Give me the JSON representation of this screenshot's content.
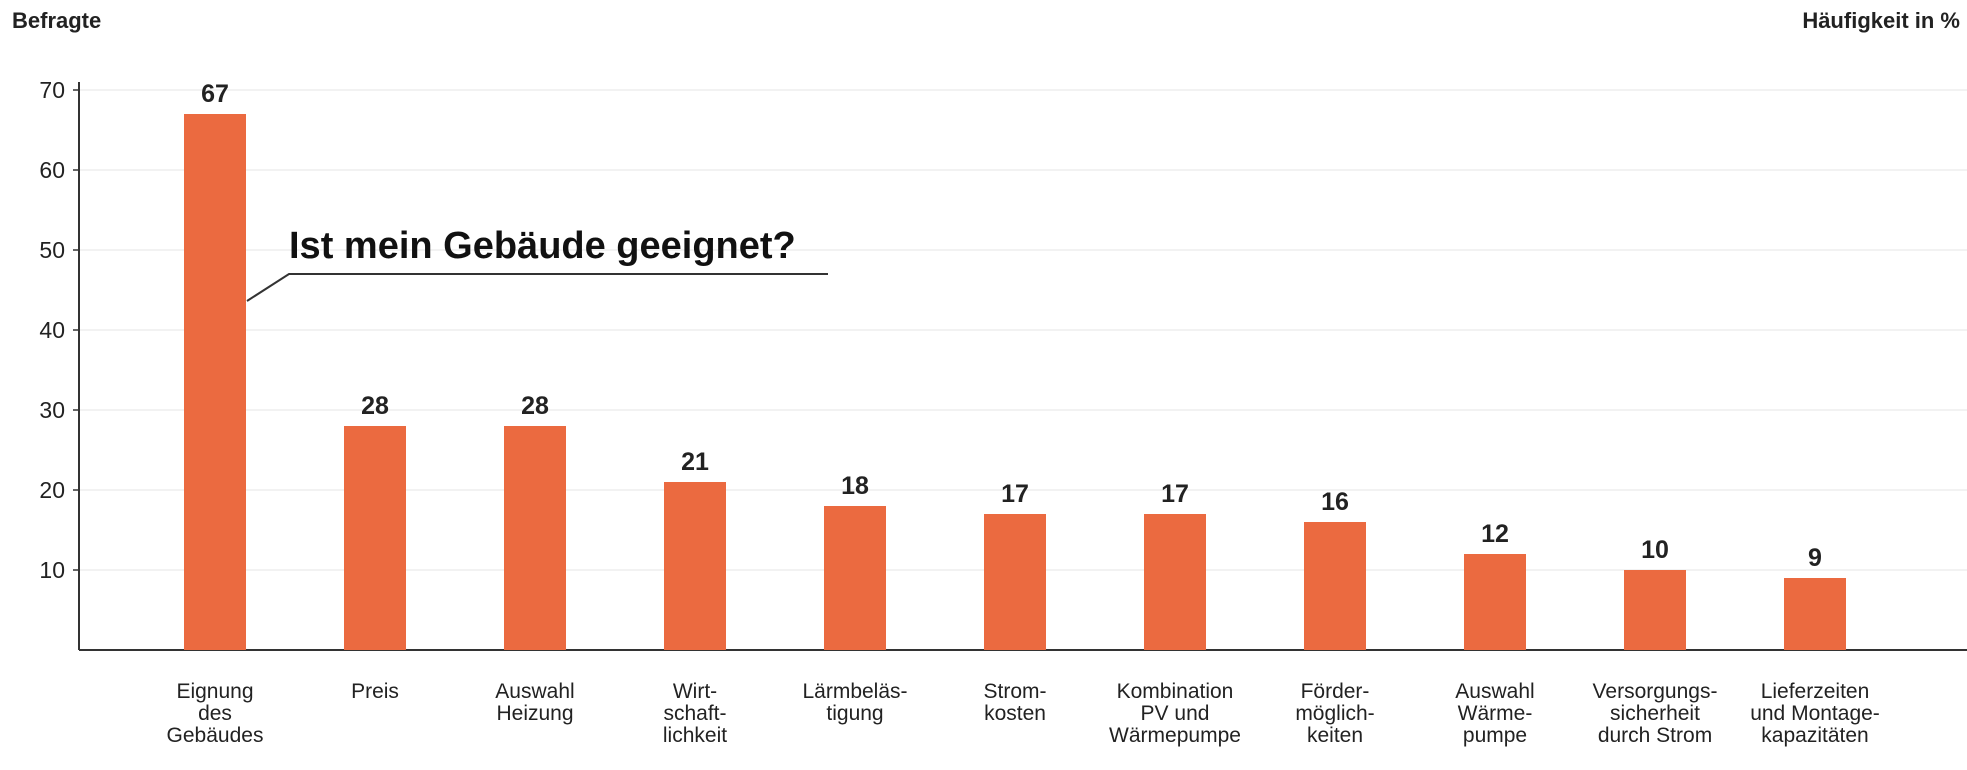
{
  "chart_data": {
    "type": "bar",
    "y_label": "Befragte",
    "y_label_right": "Häufigkeit in %",
    "annotation": "Ist mein Gebäude geeignet?",
    "categories": [
      "Eignung\ndes\nGebäudes",
      "Preis",
      "Auswahl\nHeizung",
      "Wirt-\nschaft-\nlichkeit",
      "Lärmbeläs-\ntigung",
      "Strom-\nkosten",
      "Kombination\nPV und\nWärmepumpe",
      "Förder-\nmöglich-\nkeiten",
      "Auswahl\nWärme-\npumpe",
      "Versorgungs-\nsicherheit\ndurch Strom",
      "Lieferzeiten\nund Montage-\nkapazitäten"
    ],
    "values": [
      67,
      28,
      28,
      21,
      18,
      17,
      17,
      16,
      12,
      10,
      9
    ],
    "color": "#eb6a40",
    "ylim": [
      0,
      70
    ],
    "yticks": [
      10,
      20,
      30,
      40,
      50,
      60,
      70
    ],
    "grid": true
  }
}
